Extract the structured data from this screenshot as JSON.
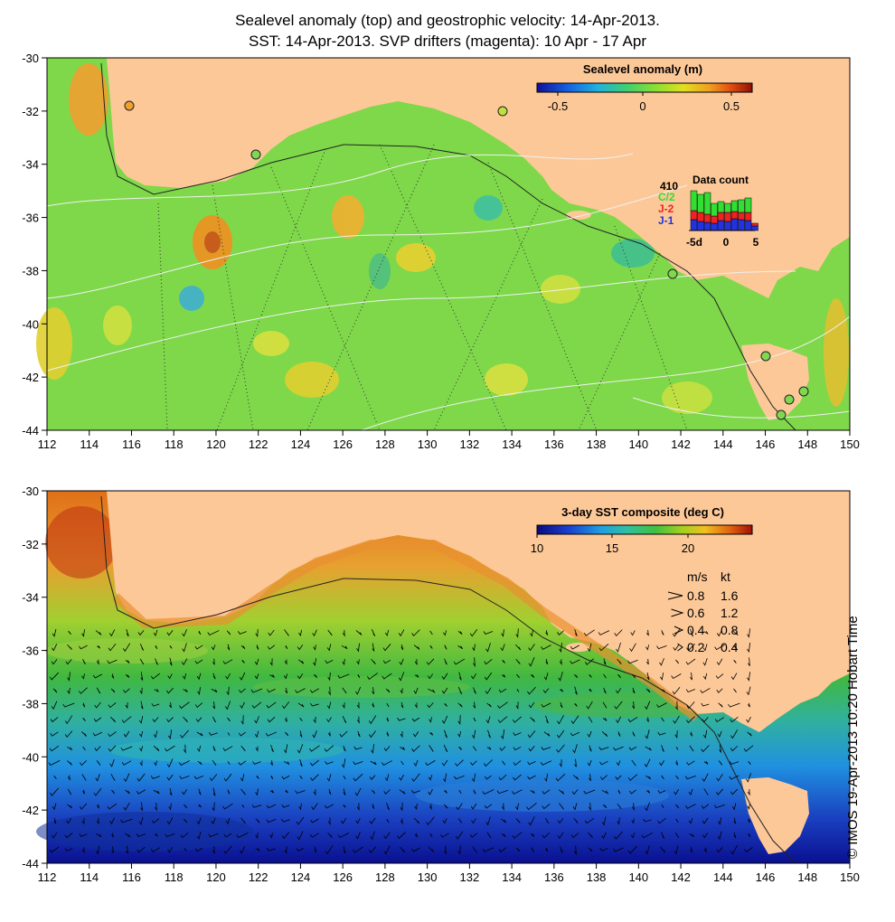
{
  "title_line1": "Sealevel anomaly (top) and geostrophic velocity: 14-Apr-2013.",
  "title_line2": "SST: 14-Apr-2013. SVP drifters (magenta): 10 Apr - 17 Apr",
  "credit": "© IMOS 19-Apr-2013 10:20 Hobart Time",
  "top_panel": {
    "colorbar_title": "Sealevel anomaly (m)",
    "colorbar_ticks": [
      "-0.5",
      "0",
      "0.5"
    ],
    "data_count": {
      "title": "Data count",
      "count": "410",
      "satellites": [
        {
          "label": "C/2",
          "color": "#33dd33"
        },
        {
          "label": "J-2",
          "color": "#ee2222"
        },
        {
          "label": "J-1",
          "color": "#2233dd"
        }
      ],
      "axis_labels": [
        "-5d",
        "0",
        "5"
      ]
    }
  },
  "bottom_panel": {
    "colorbar_title": "3-day SST composite (deg C)",
    "colorbar_ticks": [
      "10",
      "15",
      "20"
    ],
    "velocity_legend": {
      "headers": [
        "m/s",
        "kt"
      ],
      "rows": [
        {
          "ms": "0.8",
          "kt": "1.6"
        },
        {
          "ms": "0.6",
          "kt": "1.2"
        },
        {
          "ms": "0.4",
          "kt": "0.8"
        },
        {
          "ms": "0.2",
          "kt": "0.4"
        }
      ]
    }
  },
  "axes": {
    "x_ticks": [
      "112",
      "114",
      "116",
      "118",
      "120",
      "122",
      "124",
      "126",
      "128",
      "130",
      "132",
      "134",
      "136",
      "138",
      "140",
      "142",
      "144",
      "146",
      "148",
      "150"
    ],
    "y_ticks": [
      "-30",
      "-32",
      "-34",
      "-36",
      "-38",
      "-40",
      "-42",
      "-44"
    ]
  },
  "colors": {
    "land": "#fdc898",
    "sla_scale": [
      "#101098",
      "#1460e0",
      "#20b0e0",
      "#40d070",
      "#90e030",
      "#e0e020",
      "#f0a020",
      "#e05010",
      "#901008"
    ],
    "sst_scale": [
      "#0a0a80",
      "#1a40d0",
      "#20a0e0",
      "#30c0a0",
      "#40c040",
      "#a0d020",
      "#f0c020",
      "#e06010",
      "#a01008"
    ]
  }
}
